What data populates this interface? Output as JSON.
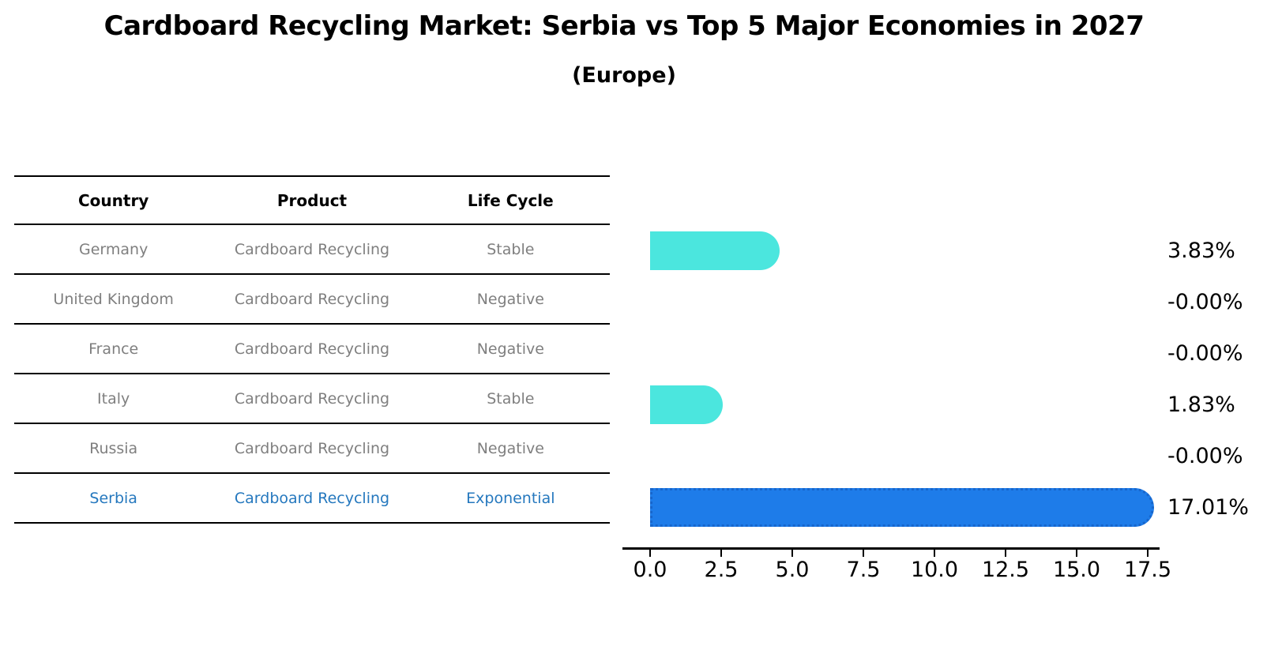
{
  "title": "Cardboard Recycling Market: Serbia vs Top 5 Major Economies in 2027",
  "subtitle": "(Europe)",
  "table": {
    "headers": [
      "Country",
      "Product",
      "Life Cycle"
    ],
    "rows": [
      {
        "country": "Germany",
        "product": "Cardboard Recycling",
        "life_cycle": "Stable",
        "highlighted": false
      },
      {
        "country": "United Kingdom",
        "product": "Cardboard Recycling",
        "life_cycle": "Negative",
        "highlighted": false
      },
      {
        "country": "France",
        "product": "Cardboard Recycling",
        "life_cycle": "Negative",
        "highlighted": false
      },
      {
        "country": "Italy",
        "product": "Cardboard Recycling",
        "life_cycle": "Stable",
        "highlighted": false
      },
      {
        "country": "Russia",
        "product": "Cardboard Recycling",
        "life_cycle": "Negative",
        "highlighted": false
      },
      {
        "country": "Serbia",
        "product": "Cardboard Recycling",
        "life_cycle": "Exponential",
        "highlighted": true
      }
    ]
  },
  "chart_data": {
    "type": "bar",
    "orientation": "horizontal",
    "title": "Cardboard Recycling Market: Serbia vs Top 5 Major Economies in 2027 (Europe)",
    "categories": [
      "Germany",
      "United Kingdom",
      "France",
      "Italy",
      "Russia",
      "Serbia"
    ],
    "values": [
      3.83,
      -0.0,
      -0.0,
      1.83,
      -0.0,
      17.01
    ],
    "value_labels": [
      "3.83%",
      "-0.00%",
      "-0.00%",
      "1.83%",
      "-0.00%",
      "17.01%"
    ],
    "xlim": [
      0,
      17.5
    ],
    "x_ticks": [
      0.0,
      2.5,
      5.0,
      7.5,
      10.0,
      12.5,
      15.0,
      17.5
    ],
    "x_tick_labels": [
      "0.0",
      "2.5",
      "5.0",
      "7.5",
      "10.0",
      "12.5",
      "15.0",
      "17.5"
    ],
    "grid": false,
    "legend": false,
    "highlight_index": 5,
    "colors": {
      "default_bar": "#4BE6DE",
      "highlight_bar": "#1E7CE9",
      "highlight_bar_border": "#1766CC",
      "muted_text": "#7F7F7F",
      "highlight_text": "#2578BE",
      "axis": "#000000"
    }
  }
}
